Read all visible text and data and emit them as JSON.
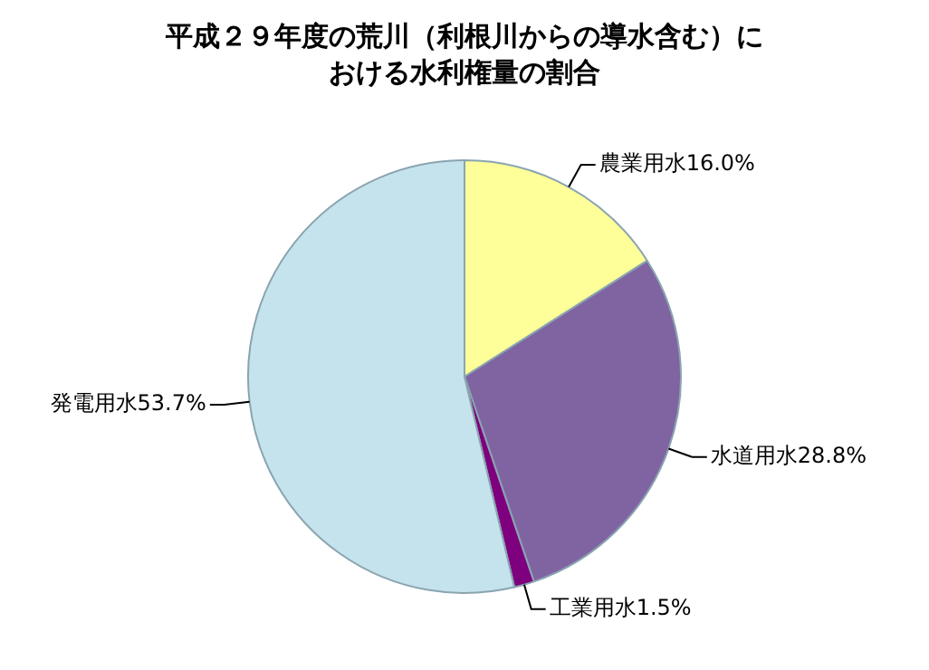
{
  "chart_data": {
    "type": "pie",
    "title": "平成２９年度の荒川（利根川からの導水含む）における水利権量の割合",
    "categories": [
      "農業用水",
      "水道用水",
      "工業用水",
      "発電用水"
    ],
    "values": [
      16.0,
      28.8,
      1.5,
      53.7
    ],
    "value_labels": [
      "16.0%",
      "28.8%",
      "1.5%",
      "53.7%"
    ],
    "colors": [
      "#ffff99",
      "#8064a2",
      "#7f007f",
      "#c5e3ec"
    ],
    "legend": false
  }
}
